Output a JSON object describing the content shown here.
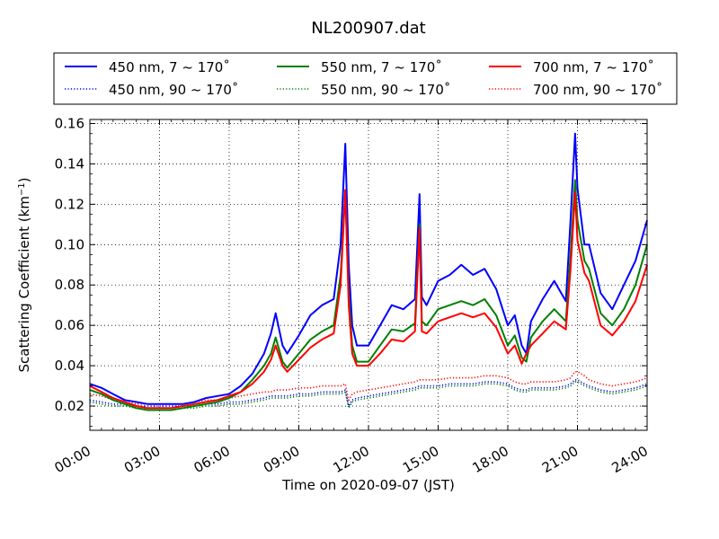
{
  "chart_data": {
    "type": "line",
    "title": "NL200907.dat",
    "xlabel": "Time on 2020-09-07 (JST)",
    "ylabel_main": "Scattering Coefficient (km",
    "ylabel_sup": "−1",
    "ylabel_close": ")",
    "xlim": [
      0,
      24
    ],
    "ylim": [
      0.008,
      0.162
    ],
    "xticks": [
      {
        "value": 0,
        "label": "00:00"
      },
      {
        "value": 3,
        "label": "03:00"
      },
      {
        "value": 6,
        "label": "06:00"
      },
      {
        "value": 9,
        "label": "09:00"
      },
      {
        "value": 12,
        "label": "12:00"
      },
      {
        "value": 15,
        "label": "15:00"
      },
      {
        "value": 18,
        "label": "18:00"
      },
      {
        "value": 21,
        "label": "21:00"
      },
      {
        "value": 24,
        "label": "24:00"
      }
    ],
    "yticks": [
      {
        "value": 0.02,
        "label": "0.02"
      },
      {
        "value": 0.04,
        "label": "0.04"
      },
      {
        "value": 0.06,
        "label": "0.06"
      },
      {
        "value": 0.08,
        "label": "0.08"
      },
      {
        "value": 0.1,
        "label": "0.10"
      },
      {
        "value": 0.12,
        "label": "0.12"
      },
      {
        "value": 0.14,
        "label": "0.14"
      },
      {
        "value": 0.16,
        "label": "0.16"
      }
    ],
    "grid": true,
    "legend_placement": "top (above plot, 3 columns)",
    "x": [
      0,
      0.5,
      1,
      1.5,
      2,
      2.5,
      3,
      3.5,
      4,
      4.5,
      5,
      5.5,
      6,
      6.5,
      7,
      7.5,
      7.8,
      8,
      8.3,
      8.5,
      9,
      9.5,
      10,
      10.5,
      10.8,
      11,
      11.15,
      11.3,
      11.5,
      12,
      12.5,
      13,
      13.5,
      14,
      14.2,
      14.3,
      14.5,
      15,
      15.5,
      16,
      16.5,
      17,
      17.5,
      18,
      18.3,
      18.6,
      18.8,
      19,
      19.5,
      20,
      20.5,
      20.7,
      20.9,
      21,
      21.3,
      21.5,
      22,
      22.5,
      23,
      23.5,
      24
    ],
    "series": [
      {
        "name": "450 nm, 7 ~ 170˚",
        "color": "#0000ff",
        "dash": "solid",
        "values": [
          0.031,
          0.029,
          0.026,
          0.023,
          0.022,
          0.021,
          0.021,
          0.021,
          0.021,
          0.022,
          0.024,
          0.025,
          0.026,
          0.03,
          0.036,
          0.046,
          0.056,
          0.066,
          0.05,
          0.046,
          0.055,
          0.065,
          0.07,
          0.073,
          0.1,
          0.15,
          0.09,
          0.06,
          0.05,
          0.05,
          0.06,
          0.07,
          0.068,
          0.073,
          0.125,
          0.074,
          0.07,
          0.082,
          0.085,
          0.09,
          0.085,
          0.088,
          0.078,
          0.06,
          0.065,
          0.05,
          0.046,
          0.062,
          0.073,
          0.082,
          0.072,
          0.112,
          0.155,
          0.128,
          0.1,
          0.1,
          0.076,
          0.068,
          0.08,
          0.092,
          0.112
        ]
      },
      {
        "name": "550 nm, 7 ~ 170˚",
        "color": "#008000",
        "dash": "solid",
        "values": [
          0.028,
          0.026,
          0.023,
          0.021,
          0.019,
          0.018,
          0.018,
          0.018,
          0.019,
          0.02,
          0.021,
          0.022,
          0.024,
          0.027,
          0.033,
          0.04,
          0.046,
          0.054,
          0.042,
          0.039,
          0.046,
          0.053,
          0.057,
          0.06,
          0.085,
          0.127,
          0.075,
          0.05,
          0.042,
          0.042,
          0.05,
          0.058,
          0.057,
          0.061,
          0.11,
          0.062,
          0.06,
          0.068,
          0.07,
          0.072,
          0.07,
          0.073,
          0.065,
          0.05,
          0.055,
          0.044,
          0.042,
          0.054,
          0.062,
          0.068,
          0.062,
          0.095,
          0.132,
          0.112,
          0.092,
          0.088,
          0.066,
          0.06,
          0.068,
          0.08,
          0.1
        ]
      },
      {
        "name": "700 nm, 7 ~ 170˚",
        "color": "#ff0000",
        "dash": "solid",
        "values": [
          0.03,
          0.027,
          0.024,
          0.022,
          0.02,
          0.019,
          0.019,
          0.019,
          0.02,
          0.021,
          0.022,
          0.023,
          0.025,
          0.027,
          0.031,
          0.037,
          0.043,
          0.05,
          0.04,
          0.037,
          0.043,
          0.049,
          0.053,
          0.056,
          0.08,
          0.127,
          0.07,
          0.046,
          0.04,
          0.04,
          0.046,
          0.053,
          0.052,
          0.057,
          0.108,
          0.057,
          0.056,
          0.062,
          0.064,
          0.066,
          0.064,
          0.066,
          0.059,
          0.046,
          0.05,
          0.041,
          0.046,
          0.05,
          0.056,
          0.062,
          0.058,
          0.088,
          0.126,
          0.102,
          0.086,
          0.082,
          0.06,
          0.055,
          0.062,
          0.072,
          0.09
        ]
      },
      {
        "name": "450 nm, 90 ~ 170˚",
        "color": "#0000ff",
        "dash": "dotted",
        "values": [
          0.023,
          0.022,
          0.021,
          0.021,
          0.02,
          0.02,
          0.02,
          0.02,
          0.02,
          0.02,
          0.021,
          0.021,
          0.022,
          0.022,
          0.023,
          0.024,
          0.025,
          0.025,
          0.025,
          0.025,
          0.026,
          0.026,
          0.027,
          0.027,
          0.027,
          0.028,
          0.02,
          0.023,
          0.024,
          0.025,
          0.026,
          0.027,
          0.028,
          0.029,
          0.03,
          0.03,
          0.03,
          0.03,
          0.031,
          0.031,
          0.031,
          0.032,
          0.032,
          0.031,
          0.029,
          0.028,
          0.028,
          0.029,
          0.029,
          0.029,
          0.03,
          0.031,
          0.033,
          0.033,
          0.031,
          0.03,
          0.028,
          0.027,
          0.028,
          0.029,
          0.031
        ]
      },
      {
        "name": "550 nm, 90 ~ 170˚",
        "color": "#008000",
        "dash": "dotted",
        "values": [
          0.022,
          0.021,
          0.02,
          0.02,
          0.019,
          0.019,
          0.019,
          0.019,
          0.019,
          0.019,
          0.02,
          0.02,
          0.021,
          0.021,
          0.022,
          0.023,
          0.024,
          0.024,
          0.024,
          0.024,
          0.025,
          0.025,
          0.026,
          0.026,
          0.026,
          0.027,
          0.019,
          0.022,
          0.023,
          0.024,
          0.025,
          0.026,
          0.027,
          0.028,
          0.029,
          0.029,
          0.029,
          0.029,
          0.03,
          0.03,
          0.03,
          0.031,
          0.031,
          0.03,
          0.028,
          0.027,
          0.027,
          0.028,
          0.028,
          0.028,
          0.029,
          0.03,
          0.032,
          0.032,
          0.03,
          0.029,
          0.027,
          0.026,
          0.027,
          0.028,
          0.03
        ]
      },
      {
        "name": "700 nm, 90 ~ 170˚",
        "color": "#ff0000",
        "dash": "dotted",
        "values": [
          0.026,
          0.025,
          0.023,
          0.022,
          0.021,
          0.021,
          0.021,
          0.021,
          0.021,
          0.022,
          0.023,
          0.023,
          0.024,
          0.025,
          0.026,
          0.027,
          0.027,
          0.028,
          0.028,
          0.028,
          0.029,
          0.029,
          0.03,
          0.03,
          0.03,
          0.031,
          0.023,
          0.026,
          0.027,
          0.028,
          0.029,
          0.03,
          0.031,
          0.032,
          0.033,
          0.033,
          0.033,
          0.033,
          0.034,
          0.034,
          0.034,
          0.035,
          0.035,
          0.034,
          0.032,
          0.031,
          0.031,
          0.032,
          0.032,
          0.032,
          0.033,
          0.034,
          0.037,
          0.037,
          0.035,
          0.033,
          0.031,
          0.03,
          0.031,
          0.032,
          0.034
        ]
      }
    ]
  }
}
